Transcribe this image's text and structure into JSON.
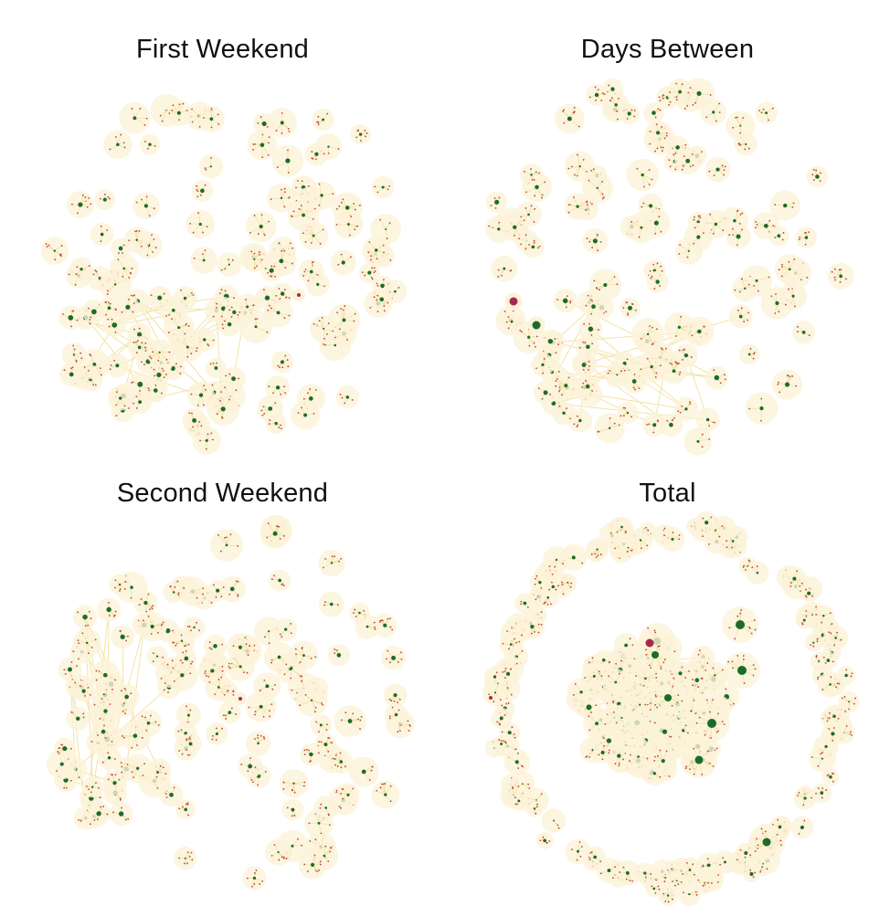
{
  "panels": [
    {
      "title": "First Weekend"
    },
    {
      "title": "Days Between"
    },
    {
      "title": "Second Weekend"
    },
    {
      "title": "Total"
    }
  ],
  "colors": {
    "edge": "#f3e3a6",
    "hub": "#1c6b2a",
    "leaf": "#b84a3c",
    "special": "#a8284a",
    "glow": "#fbf2d8"
  }
}
